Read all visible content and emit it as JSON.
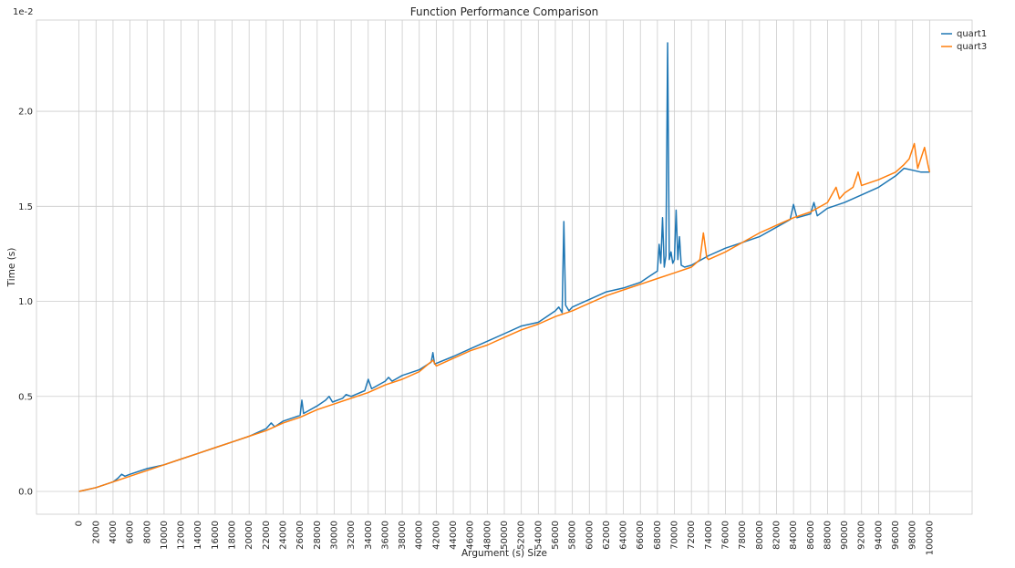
{
  "chart_data": {
    "type": "line",
    "title": "Function Performance Comparison",
    "xlabel": "Argument (s) Size",
    "ylabel": "Time (s)",
    "y_offset_label": "1e-2",
    "y_scale": 0.01,
    "xlim": [
      -5000,
      105000
    ],
    "ylim": [
      -0.12,
      2.48
    ],
    "x_ticks": [
      0,
      2000,
      4000,
      6000,
      8000,
      10000,
      12000,
      14000,
      16000,
      18000,
      20000,
      22000,
      24000,
      26000,
      28000,
      30000,
      32000,
      34000,
      36000,
      38000,
      40000,
      42000,
      44000,
      46000,
      48000,
      50000,
      52000,
      54000,
      56000,
      58000,
      60000,
      62000,
      64000,
      66000,
      68000,
      70000,
      72000,
      74000,
      76000,
      78000,
      80000,
      82000,
      84000,
      86000,
      88000,
      90000,
      92000,
      94000,
      96000,
      98000,
      100000
    ],
    "y_ticks": [
      0.0,
      0.5,
      1.0,
      1.5,
      2.0
    ],
    "y_tick_labels": [
      "0.0",
      "0.5",
      "1.0",
      "1.5",
      "2.0"
    ],
    "grid": true,
    "legend_position": "top-right",
    "series": [
      {
        "name": "quart1",
        "color": "#1f77b4",
        "points": [
          [
            0,
            0.0
          ],
          [
            2000,
            0.02
          ],
          [
            4000,
            0.05
          ],
          [
            4600,
            0.07
          ],
          [
            5000,
            0.09
          ],
          [
            5400,
            0.08
          ],
          [
            6000,
            0.09
          ],
          [
            8000,
            0.12
          ],
          [
            10000,
            0.14
          ],
          [
            12000,
            0.17
          ],
          [
            14000,
            0.2
          ],
          [
            16000,
            0.23
          ],
          [
            18000,
            0.26
          ],
          [
            20000,
            0.29
          ],
          [
            22000,
            0.33
          ],
          [
            22600,
            0.36
          ],
          [
            23000,
            0.34
          ],
          [
            24000,
            0.37
          ],
          [
            26000,
            0.4
          ],
          [
            26200,
            0.48
          ],
          [
            26400,
            0.41
          ],
          [
            28000,
            0.45
          ],
          [
            29000,
            0.48
          ],
          [
            29400,
            0.5
          ],
          [
            29800,
            0.47
          ],
          [
            31000,
            0.49
          ],
          [
            31400,
            0.51
          ],
          [
            32000,
            0.5
          ],
          [
            33600,
            0.53
          ],
          [
            34000,
            0.59
          ],
          [
            34400,
            0.54
          ],
          [
            36000,
            0.58
          ],
          [
            36400,
            0.6
          ],
          [
            36800,
            0.58
          ],
          [
            38000,
            0.61
          ],
          [
            40000,
            0.64
          ],
          [
            41400,
            0.68
          ],
          [
            41600,
            0.73
          ],
          [
            41800,
            0.67
          ],
          [
            44000,
            0.71
          ],
          [
            46000,
            0.75
          ],
          [
            48000,
            0.79
          ],
          [
            50000,
            0.83
          ],
          [
            52000,
            0.87
          ],
          [
            54000,
            0.89
          ],
          [
            55000,
            0.92
          ],
          [
            56000,
            0.95
          ],
          [
            56400,
            0.97
          ],
          [
            56800,
            0.94
          ],
          [
            57000,
            1.42
          ],
          [
            57200,
            0.98
          ],
          [
            57600,
            0.95
          ],
          [
            58000,
            0.97
          ],
          [
            60000,
            1.01
          ],
          [
            62000,
            1.05
          ],
          [
            64000,
            1.07
          ],
          [
            66000,
            1.1
          ],
          [
            67000,
            1.13
          ],
          [
            68000,
            1.16
          ],
          [
            68200,
            1.3
          ],
          [
            68400,
            1.2
          ],
          [
            68600,
            1.44
          ],
          [
            68800,
            1.18
          ],
          [
            69000,
            1.24
          ],
          [
            69200,
            2.36
          ],
          [
            69400,
            1.22
          ],
          [
            69600,
            1.26
          ],
          [
            69800,
            1.2
          ],
          [
            70000,
            1.22
          ],
          [
            70200,
            1.48
          ],
          [
            70400,
            1.22
          ],
          [
            70600,
            1.34
          ],
          [
            70800,
            1.19
          ],
          [
            71200,
            1.18
          ],
          [
            72000,
            1.19
          ],
          [
            74000,
            1.24
          ],
          [
            76000,
            1.28
          ],
          [
            78000,
            1.31
          ],
          [
            80000,
            1.34
          ],
          [
            82000,
            1.39
          ],
          [
            83600,
            1.43
          ],
          [
            84000,
            1.51
          ],
          [
            84400,
            1.44
          ],
          [
            86000,
            1.46
          ],
          [
            86400,
            1.52
          ],
          [
            86800,
            1.45
          ],
          [
            88000,
            1.49
          ],
          [
            90000,
            1.52
          ],
          [
            92000,
            1.56
          ],
          [
            94000,
            1.6
          ],
          [
            96000,
            1.66
          ],
          [
            97000,
            1.7
          ],
          [
            98000,
            1.69
          ],
          [
            99000,
            1.68
          ],
          [
            100000,
            1.68
          ]
        ]
      },
      {
        "name": "quart3",
        "color": "#ff7f0e",
        "points": [
          [
            0,
            0.0
          ],
          [
            2000,
            0.02
          ],
          [
            4000,
            0.05
          ],
          [
            6000,
            0.08
          ],
          [
            8000,
            0.11
          ],
          [
            10000,
            0.14
          ],
          [
            12000,
            0.17
          ],
          [
            14000,
            0.2
          ],
          [
            16000,
            0.23
          ],
          [
            18000,
            0.26
          ],
          [
            20000,
            0.29
          ],
          [
            22000,
            0.32
          ],
          [
            24000,
            0.36
          ],
          [
            26000,
            0.39
          ],
          [
            28000,
            0.43
          ],
          [
            30000,
            0.46
          ],
          [
            32000,
            0.49
          ],
          [
            34000,
            0.52
          ],
          [
            36000,
            0.56
          ],
          [
            38000,
            0.59
          ],
          [
            40000,
            0.63
          ],
          [
            41600,
            0.69
          ],
          [
            42000,
            0.66
          ],
          [
            44000,
            0.7
          ],
          [
            46000,
            0.74
          ],
          [
            48000,
            0.77
          ],
          [
            50000,
            0.81
          ],
          [
            52000,
            0.85
          ],
          [
            54000,
            0.88
          ],
          [
            56000,
            0.92
          ],
          [
            58000,
            0.95
          ],
          [
            60000,
            0.99
          ],
          [
            62000,
            1.03
          ],
          [
            64000,
            1.06
          ],
          [
            66000,
            1.09
          ],
          [
            68000,
            1.12
          ],
          [
            70000,
            1.15
          ],
          [
            72000,
            1.18
          ],
          [
            73000,
            1.22
          ],
          [
            73400,
            1.36
          ],
          [
            73800,
            1.23
          ],
          [
            74000,
            1.22
          ],
          [
            76000,
            1.26
          ],
          [
            78000,
            1.31
          ],
          [
            80000,
            1.36
          ],
          [
            82000,
            1.4
          ],
          [
            84000,
            1.44
          ],
          [
            86000,
            1.47
          ],
          [
            88000,
            1.52
          ],
          [
            89000,
            1.6
          ],
          [
            89400,
            1.54
          ],
          [
            90000,
            1.57
          ],
          [
            91000,
            1.6
          ],
          [
            91600,
            1.68
          ],
          [
            92000,
            1.61
          ],
          [
            94000,
            1.64
          ],
          [
            96000,
            1.68
          ],
          [
            97000,
            1.72
          ],
          [
            97600,
            1.75
          ],
          [
            98200,
            1.83
          ],
          [
            98600,
            1.7
          ],
          [
            99400,
            1.81
          ],
          [
            99800,
            1.72
          ],
          [
            100000,
            1.68
          ]
        ]
      }
    ]
  }
}
